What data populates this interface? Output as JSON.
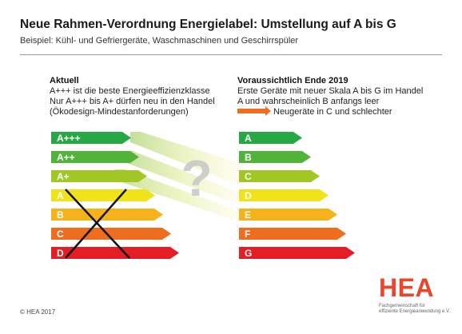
{
  "title": "Neue Rahmen-Verordnung Energielabel: Umstellung auf A bis G",
  "subtitle": "Beispiel: Kühl- und Gefriergeräte, Waschmaschinen und Geschirrspüler",
  "left_panel": {
    "heading": "Aktuell",
    "lines": [
      "A+++ ist die beste Energieeffizienzklasse",
      "Nur  A+++ bis A+ dürfen neu in den Handel",
      "(Ökodesign-Mindestanforderungen)"
    ],
    "classes": [
      "A+++",
      "A++",
      "A+",
      "A",
      "B",
      "C",
      "D"
    ],
    "crossed_out": [
      "A",
      "B",
      "C",
      "D"
    ]
  },
  "right_panel": {
    "heading": "Voraussichtlich Ende 2019",
    "lines": [
      "Erste Geräte mit neuer Skala A bis G im Handel",
      "A und wahrscheinlich B anfangs leer"
    ],
    "legend_text": "Neugeräte in C und schlechter",
    "classes": [
      "A",
      "B",
      "C",
      "D",
      "E",
      "F",
      "G"
    ]
  },
  "question_mark": "?",
  "scale_colors": [
    "#27a844",
    "#52b33a",
    "#a3c627",
    "#f0e31c",
    "#f6b21b",
    "#ee6d1f",
    "#e31e24"
  ],
  "arrow_color": "#ee6d1f",
  "footer": {
    "copyright": "© HEA 2017",
    "logo": "HEA",
    "logo_sub_lines": [
      "Fachgemeinschaft für",
      "effiziente Energieanwendung e.V."
    ]
  }
}
